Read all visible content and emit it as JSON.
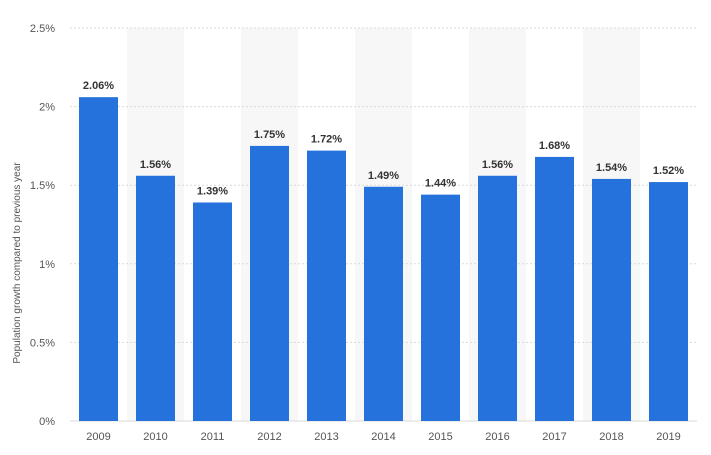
{
  "chart_data": {
    "type": "bar",
    "title": "",
    "xlabel": "",
    "ylabel": "Population growth compared to previous year",
    "categories": [
      "2009",
      "2010",
      "2011",
      "2012",
      "2013",
      "2014",
      "2015",
      "2016",
      "2017",
      "2018",
      "2019"
    ],
    "values": [
      2.06,
      1.56,
      1.39,
      1.75,
      1.72,
      1.49,
      1.44,
      1.56,
      1.68,
      1.54,
      1.52
    ],
    "value_labels": [
      "2.06%",
      "1.56%",
      "1.39%",
      "1.75%",
      "1.72%",
      "1.49%",
      "1.44%",
      "1.56%",
      "1.68%",
      "1.54%",
      "1.52%"
    ],
    "y_ticks": [
      0,
      0.5,
      1,
      1.5,
      2,
      2.5
    ],
    "y_tick_labels": [
      "0%",
      "0.5%",
      "1%",
      "1.5%",
      "2%",
      "2.5%"
    ],
    "ylim": [
      0,
      2.5
    ],
    "grid": true,
    "colors": {
      "bar": "#2672dc",
      "band": "#f7f7f7",
      "grid": "#d9d9d9"
    }
  }
}
